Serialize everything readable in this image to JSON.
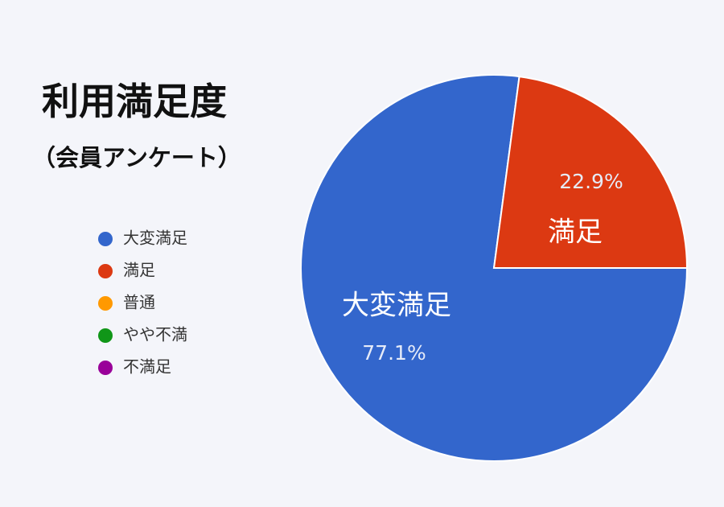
{
  "chart_data": {
    "type": "pie",
    "title": "利用満足度",
    "subtitle": "（会員アンケート）",
    "categories": [
      "大変満足",
      "満足",
      "普通",
      "やや不満",
      "不満足"
    ],
    "values": [
      77.1,
      22.9,
      0,
      0,
      0
    ],
    "value_labels": [
      "77.1%",
      "22.9%",
      null,
      null,
      null
    ],
    "colors": [
      "#3366cc",
      "#dc3912",
      "#ff9900",
      "#109618",
      "#990099"
    ],
    "legend": "left"
  }
}
